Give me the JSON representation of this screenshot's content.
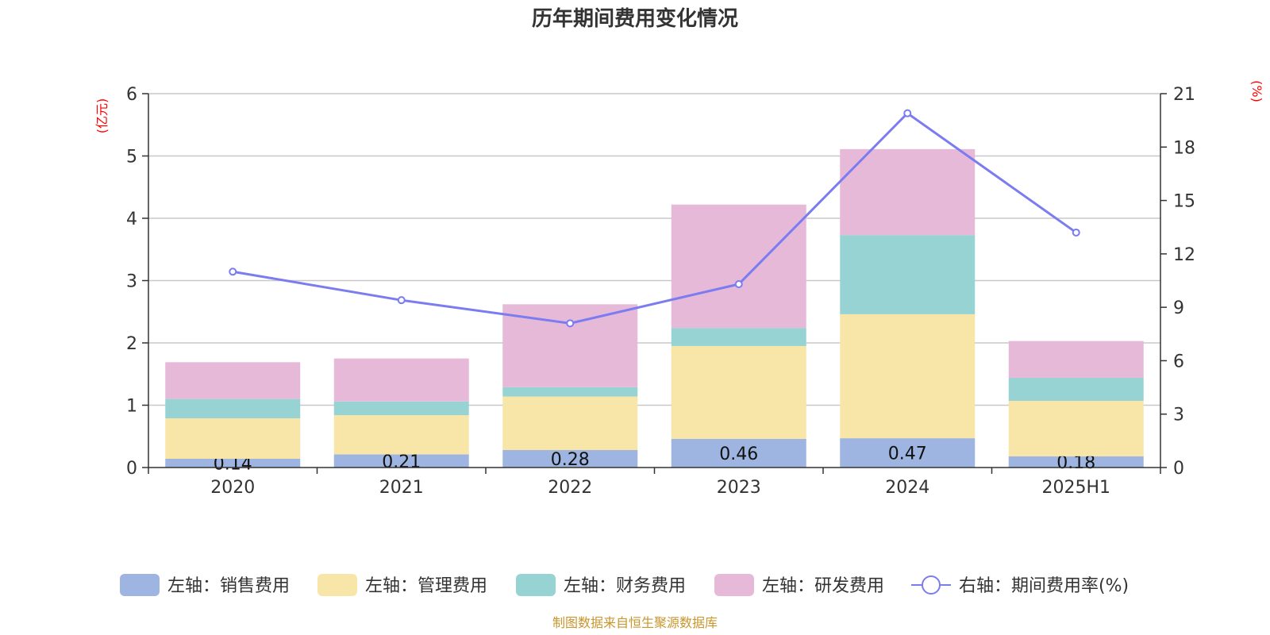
{
  "chart_data": {
    "type": "bar",
    "title": "历年期间费用变化情况",
    "categories": [
      "2020",
      "2021",
      "2022",
      "2023",
      "2024",
      "2025H1"
    ],
    "left_axis": {
      "unit": "(亿元)",
      "ylim": [
        0,
        6
      ],
      "ticks": [
        0,
        1,
        2,
        3,
        4,
        5,
        6
      ]
    },
    "right_axis": {
      "unit": "(%)",
      "ylim": [
        0,
        21
      ],
      "ticks": [
        0,
        3,
        6,
        9,
        12,
        15,
        18,
        21
      ]
    },
    "stacked": true,
    "grid": true,
    "legend_position": "bottom",
    "series": [
      {
        "name": "左轴：销售费用",
        "axis": "left",
        "color": "#9db5e0",
        "values": [
          0.14,
          0.21,
          0.28,
          0.46,
          0.47,
          0.18
        ],
        "labels": [
          "0.14",
          "0.21",
          "0.28",
          "0.46",
          "0.47",
          "0.18"
        ]
      },
      {
        "name": "左轴：管理费用",
        "axis": "left",
        "color": "#f8e6a8",
        "values": [
          0.65,
          0.63,
          0.86,
          1.49,
          1.99,
          0.89
        ]
      },
      {
        "name": "左轴：财务费用",
        "axis": "left",
        "color": "#97d3d3",
        "values": [
          0.31,
          0.22,
          0.15,
          0.29,
          1.27,
          0.37
        ]
      },
      {
        "name": "左轴：研发费用",
        "axis": "left",
        "color": "#e6b9d9",
        "values": [
          0.59,
          0.69,
          1.33,
          1.98,
          1.38,
          0.59
        ]
      },
      {
        "name": "右轴：期间费用率(%)",
        "axis": "right",
        "type": "line",
        "color": "#7b7cf0",
        "values": [
          11.0,
          9.4,
          8.1,
          10.3,
          19.9,
          13.2
        ]
      }
    ],
    "source": "制图数据来自恒生聚源数据库"
  }
}
